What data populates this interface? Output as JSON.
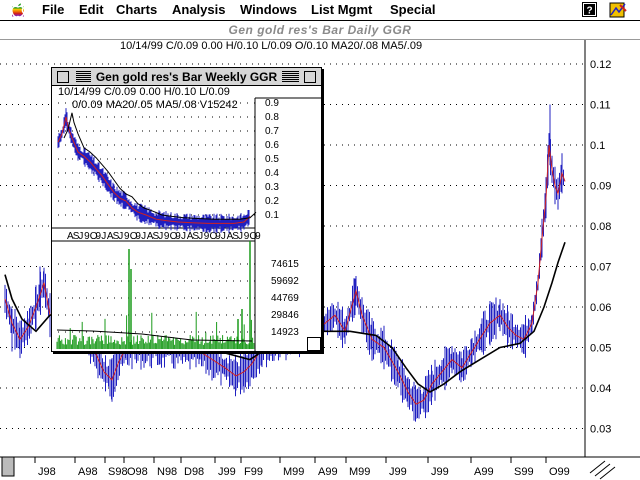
{
  "menubar": {
    "items": [
      "File",
      "Edit",
      "Charts",
      "Analysis",
      "Windows",
      "List Mgmt",
      "Special"
    ],
    "apple_icon": "apple-rainbow-logo",
    "help_icon": "question-mark-icon",
    "app_icon": "charting-app-icon"
  },
  "main_window": {
    "title": "Gen gold res's Bar Daily  GGR",
    "info": "10/14/99 C/0.09 0.00 H/0.10 L/0.09 O/0.10 MA20/.08 MA5/.09",
    "y_axis_labels": [
      "0.12",
      "0.11",
      "0.1",
      "0.09",
      "0.08",
      "0.07",
      "0.06",
      "0.05",
      "0.04",
      "0.03"
    ],
    "x_axis_labels": [
      "J98",
      "A98",
      "S98",
      "O98",
      "N98",
      "D98",
      "J99",
      "F99",
      "M99",
      "A99",
      "M99",
      "J99",
      "J99",
      "A99",
      "S99",
      "O99"
    ]
  },
  "weekly_window": {
    "title": "Gen gold res's Bar Weekly  GGR",
    "info_line1": "10/14/99 C/0.09 0.00 H/0.10 L/0.09",
    "info_line2": "0/0.09 MA20/.05 MA5/.08 V15242",
    "price_labels": [
      "0.9",
      "0.8",
      "0.7",
      "0.6",
      "0.5",
      "0.4",
      "0.3",
      "0.2",
      "0.1"
    ],
    "volume_labels": [
      "74615",
      "59692",
      "44769",
      "29846",
      "14923"
    ],
    "x_axis_labels": [
      "A",
      "S",
      "J",
      "9",
      "O",
      "9",
      "J",
      "A",
      "S",
      "J",
      "9",
      "O",
      "9",
      "J",
      "A",
      "S",
      "J",
      "9",
      "O",
      "9",
      "J",
      "A",
      "S",
      "J",
      "9",
      "O",
      "9",
      "J",
      "A",
      "S",
      "J",
      "9",
      "O",
      "9"
    ]
  },
  "colors": {
    "price_bars": "#2020c0",
    "ma_fast": "#d02020",
    "ma_slow": "#000000",
    "volume": "#1a9a1a",
    "grid": "#000000"
  }
}
